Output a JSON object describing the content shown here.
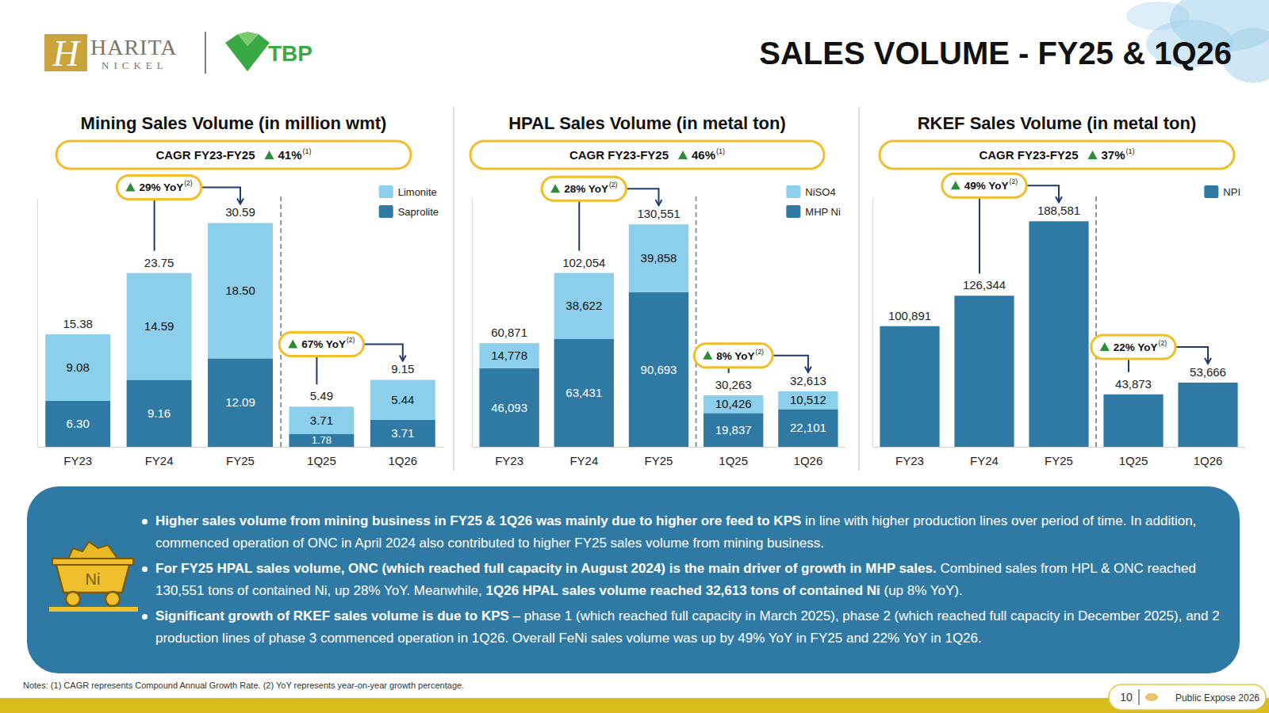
{
  "header": {
    "title": "SALES VOLUME - FY25 & 1Q26",
    "logo_mark": "H",
    "logo_name": "HARITA",
    "logo_sub": "NICKEL",
    "partner": "TBP"
  },
  "chart_data": [
    {
      "type": "bar",
      "title": "Mining Sales Volume (in million wmt)",
      "stacked": true,
      "data_labels": true,
      "tick_labels": "x",
      "grid": false,
      "legend": "top-right",
      "categories": [
        "FY23",
        "FY24",
        "FY25",
        "1Q25",
        "1Q26"
      ],
      "series": [
        {
          "name": "Saprolite",
          "color": "#2f7aa5",
          "values": [
            6.3,
            9.16,
            12.09,
            1.78,
            3.71
          ],
          "value_labels": [
            "6.30",
            "9.16",
            "12.09",
            "1.78",
            "3.71"
          ]
        },
        {
          "name": "Limonite",
          "color": "#8bcfec",
          "values": [
            9.08,
            14.59,
            18.5,
            3.71,
            5.44
          ],
          "value_labels": [
            "9.08",
            "14.59",
            "18.50",
            "3.71",
            "5.44"
          ]
        }
      ],
      "total_labels": [
        "15.38",
        "23.75",
        "30.59",
        "5.49",
        "9.15"
      ],
      "ylim": [
        0,
        34
      ],
      "yticks": [],
      "cagr": {
        "label": "CAGR FY23-FY25",
        "value": "41%",
        "note": "(1)"
      },
      "yoy": [
        {
          "text": "29% YoY",
          "note": "(2)",
          "between": [
            "FY24",
            "FY25"
          ]
        },
        {
          "text": "67% YoY",
          "note": "(2)",
          "between": [
            "1Q25",
            "1Q26"
          ]
        }
      ]
    },
    {
      "type": "bar",
      "title": "HPAL Sales Volume (in metal ton)",
      "stacked": true,
      "data_labels": true,
      "tick_labels": "x",
      "grid": false,
      "legend": "top-right",
      "categories": [
        "FY23",
        "FY24",
        "FY25",
        "1Q25",
        "1Q26"
      ],
      "series": [
        {
          "name": "MHP Ni",
          "color": "#2f7aa5",
          "values": [
            46093,
            63431,
            90693,
            19837,
            22101
          ],
          "value_labels": [
            "46,093",
            "63,431",
            "90,693",
            "19,837",
            "22,101"
          ]
        },
        {
          "name": "NiSO4",
          "color": "#8bcfec",
          "values": [
            14778,
            38622,
            39858,
            10426,
            10512
          ],
          "value_labels": [
            "14,778",
            "38,622",
            "39,858",
            "10,426",
            "10,512"
          ]
        }
      ],
      "total_labels": [
        "60,871",
        "102,054",
        "130,551",
        "30,263",
        "32,613"
      ],
      "ylim": [
        0,
        146000
      ],
      "yticks": [],
      "cagr": {
        "label": "CAGR FY23-FY25",
        "value": "46%",
        "note": "(1)"
      },
      "yoy": [
        {
          "text": "28% YoY",
          "note": "(2)",
          "between": [
            "FY24",
            "FY25"
          ]
        },
        {
          "text": "8% YoY",
          "note": "(2)",
          "between": [
            "1Q25",
            "1Q26"
          ]
        }
      ]
    },
    {
      "type": "bar",
      "title": "RKEF Sales Volume (in metal ton)",
      "stacked": false,
      "data_labels": true,
      "tick_labels": "x",
      "grid": false,
      "legend": "top-right",
      "categories": [
        "FY23",
        "FY24",
        "FY25",
        "1Q25",
        "1Q26"
      ],
      "series": [
        {
          "name": "NPI",
          "color": "#2f7aa5",
          "values": [
            100891,
            126344,
            188581,
            43873,
            53666
          ],
          "value_labels": [
            "100,891",
            "126,344",
            "188,581",
            "43,873",
            "53,666"
          ]
        }
      ],
      "ylim": [
        0,
        208000
      ],
      "yticks": [],
      "cagr": {
        "label": "CAGR FY23-FY25",
        "value": "37%",
        "note": "(1)"
      },
      "yoy": [
        {
          "text": "49% YoY",
          "note": "(2)",
          "between": [
            "FY24",
            "FY25"
          ]
        },
        {
          "text": "22% YoY",
          "note": "(2)",
          "between": [
            "1Q25",
            "1Q26"
          ]
        }
      ]
    }
  ],
  "summary": {
    "icon_label": "Ni",
    "bullets": [
      [
        {
          "text": "Higher sales volume from mining business in FY25 & 1Q26 was mainly due to higher ore feed to KPS",
          "bold": true
        },
        {
          "text": " in line with higher production lines over period of time. In addition, commenced operation of ONC in April 2024 also contributed to higher FY25 sales volume from mining business.",
          "bold": false
        }
      ],
      [
        {
          "text": "For FY25 HPAL sales volume, ONC (which reached full capacity in August 2024) is the main driver of growth in MHP sales.",
          "bold": true
        },
        {
          "text": " Combined sales from HPL & ONC reached 130,551 tons of contained Ni, up 28% YoY. Meanwhile, ",
          "bold": false
        },
        {
          "text": "1Q26 HPAL sales volume reached 32,613 tons of contained Ni",
          "bold": true
        },
        {
          "text": " (up 8% YoY).",
          "bold": false
        }
      ],
      [
        {
          "text": "Significant growth of RKEF sales volume is due to KPS",
          "bold": true
        },
        {
          "text": " – phase 1 (which reached full capacity in March 2025), phase 2 (which reached full capacity in December 2025), and 2 production lines of phase 3 commenced operation in 1Q26. Overall FeNi sales volume was up by 49% YoY in FY25 and 22% YoY in 1Q26.",
          "bold": false
        }
      ]
    ]
  },
  "notes": "Notes: (1) CAGR represents Compound Annual Growth Rate. (2) YoY represents year-on-year growth percentage.",
  "footer": {
    "page": 10,
    "event": "Public Expose 2026"
  }
}
